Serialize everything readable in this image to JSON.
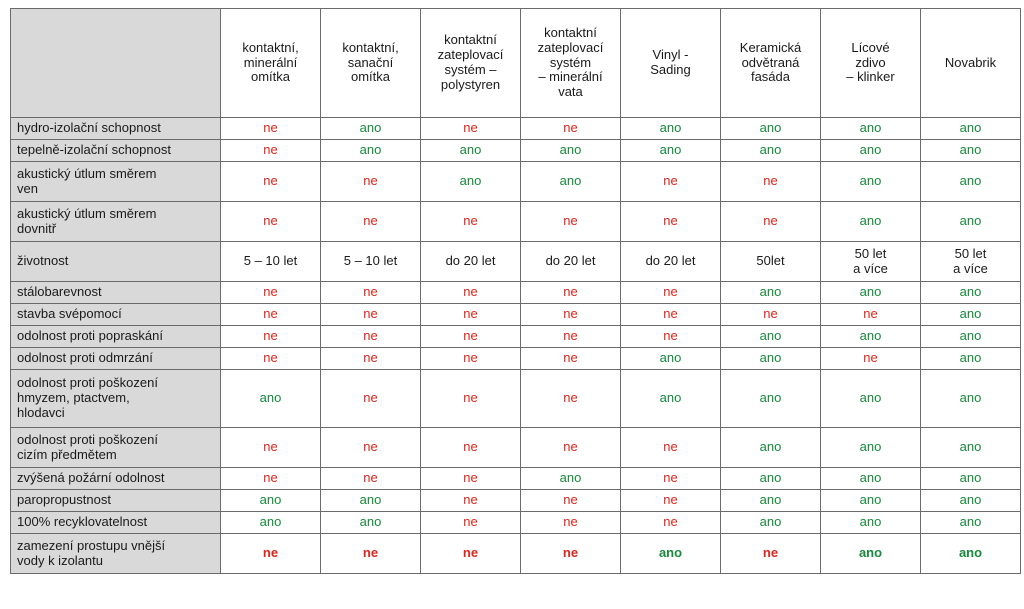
{
  "colors": {
    "ne": "#e0241b",
    "ano": "#168a3a",
    "label_bg": "#d9d9d9"
  },
  "columns": [
    "kontaktní,\nminerální\nomítka",
    "kontaktní,\nsanační\nomítka",
    "kontaktní\nzateplovací\nsystém –\npolystyren",
    "kontaktní\nzateplovací\nsystém\n– minerální\nvata",
    "Vinyl -\nSading",
    "Keramická\nodvětraná\nfasáda",
    "Lícové\nzdivo\n– klinker",
    "Novabrik"
  ],
  "rows": [
    {
      "label": "hydro-izolační schopnost",
      "values": [
        "ne",
        "ano",
        "ne",
        "ne",
        "ano",
        "ano",
        "ano",
        "ano"
      ]
    },
    {
      "label": "tepelně-izolační schopnost",
      "values": [
        "ne",
        "ano",
        "ano",
        "ano",
        "ano",
        "ano",
        "ano",
        "ano"
      ]
    },
    {
      "label": "akustický útlum směrem\nven",
      "values": [
        "ne",
        "ne",
        "ano",
        "ano",
        "ne",
        "ne",
        "ano",
        "ano"
      ]
    },
    {
      "label": "akustický útlum směrem\ndovnitř",
      "values": [
        "ne",
        "ne",
        "ne",
        "ne",
        "ne",
        "ne",
        "ano",
        "ano"
      ]
    },
    {
      "label": "životnost",
      "values": [
        "5 – 10 let",
        "5 – 10 let",
        "do 20 let",
        "do 20 let",
        "do 20 let",
        "50let",
        "50 let\na více",
        "50 let\na více"
      ]
    },
    {
      "label": "stálobarevnost",
      "values": [
        "ne",
        "ne",
        "ne",
        "ne",
        "ne",
        "ano",
        "ano",
        "ano"
      ]
    },
    {
      "label": "stavba svépomocí",
      "values": [
        "ne",
        "ne",
        "ne",
        "ne",
        "ne",
        "ne",
        "ne",
        "ano"
      ]
    },
    {
      "label": "odolnost proti popraskání",
      "values": [
        "ne",
        "ne",
        "ne",
        "ne",
        "ne",
        "ano",
        "ano",
        "ano"
      ]
    },
    {
      "label": "odolnost proti odmrzání",
      "values": [
        "ne",
        "ne",
        "ne",
        "ne",
        "ano",
        "ano",
        "ne",
        "ano"
      ]
    },
    {
      "label": "odolnost proti poškození\nhmyzem, ptactvem,\nhlodavci",
      "values": [
        "ano",
        "ne",
        "ne",
        "ne",
        "ano",
        "ano",
        "ano",
        "ano"
      ]
    },
    {
      "label": "odolnost proti poškození\ncizím předmětem",
      "values": [
        "ne",
        "ne",
        "ne",
        "ne",
        "ne",
        "ano",
        "ano",
        "ano"
      ]
    },
    {
      "label": "zvýšená požární odolnost",
      "values": [
        "ne",
        "ne",
        "ne",
        "ano",
        "ne",
        "ano",
        "ano",
        "ano"
      ]
    },
    {
      "label": "paropropustnost",
      "values": [
        "ano",
        "ano",
        "ne",
        "ne",
        "ne",
        "ano",
        "ano",
        "ano"
      ]
    },
    {
      "label": "100% recyklovatelnost",
      "values": [
        "ano",
        "ano",
        "ne",
        "ne",
        "ne",
        "ano",
        "ano",
        "ano"
      ]
    },
    {
      "label": "zamezení prostupu vnější\nvody k izolantu",
      "values": [
        "ne",
        "ne",
        "ne",
        "ne",
        "ano",
        "ne",
        "ano",
        "ano"
      ],
      "bold": true
    }
  ]
}
